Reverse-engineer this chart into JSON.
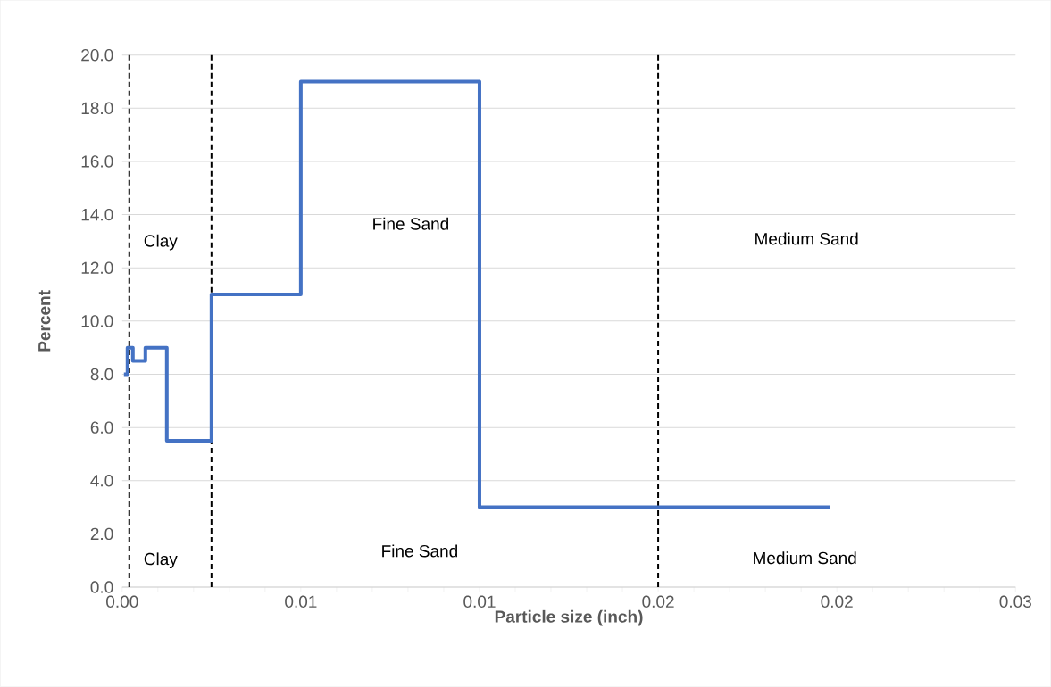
{
  "chart_data": {
    "type": "step",
    "xlabel": "Particle size (inch)",
    "ylabel": "Percent",
    "x": [
      5e-05,
      0.00015,
      0.0003,
      0.00065,
      0.00125,
      0.0025,
      0.005,
      0.01,
      0.0198
    ],
    "series": [
      {
        "color": "#4472c4",
        "values": [
          8,
          9,
          8.5,
          9,
          5.5,
          11,
          19,
          3,
          3
        ]
      }
    ],
    "xlim": [
      0,
      0.025
    ],
    "xticks": [
      {
        "value": 0,
        "label": "0.00"
      },
      {
        "value": 0.005,
        "label": "0.01"
      },
      {
        "value": 0.01,
        "label": "0.01"
      },
      {
        "value": 0.015,
        "label": "0.02"
      },
      {
        "value": 0.02,
        "label": "0.02"
      },
      {
        "value": 0.025,
        "label": "0.03"
      }
    ],
    "ylim": [
      0,
      20
    ],
    "yticks": [
      {
        "value": 0,
        "label": "0.0"
      },
      {
        "value": 2,
        "label": "2.0"
      },
      {
        "value": 4,
        "label": "4.0"
      },
      {
        "value": 6,
        "label": "6.0"
      },
      {
        "value": 8,
        "label": "8.0"
      },
      {
        "value": 10,
        "label": "10.0"
      },
      {
        "value": 12,
        "label": "12.0"
      },
      {
        "value": 14,
        "label": "14.0"
      },
      {
        "value": 16,
        "label": "16.0"
      },
      {
        "value": 18,
        "label": "18.0"
      },
      {
        "value": 20,
        "label": "20.0"
      }
    ],
    "grid": "y",
    "marker": "none",
    "line_style": "solid",
    "ref_lines": [
      {
        "axis": "x",
        "value": 0.0002,
        "color": "#000000",
        "line_style": "dashed"
      },
      {
        "axis": "x",
        "value": 0.0025,
        "color": "#000000",
        "line_style": "dashed"
      },
      {
        "axis": "x",
        "value": 0.015,
        "color": "#000000",
        "line_style": "dashed"
      }
    ],
    "annotations": [
      "Clay",
      "Clay",
      "Fine Sand",
      "Fine Sand",
      "Medium Sand",
      "Medium Sand"
    ]
  }
}
